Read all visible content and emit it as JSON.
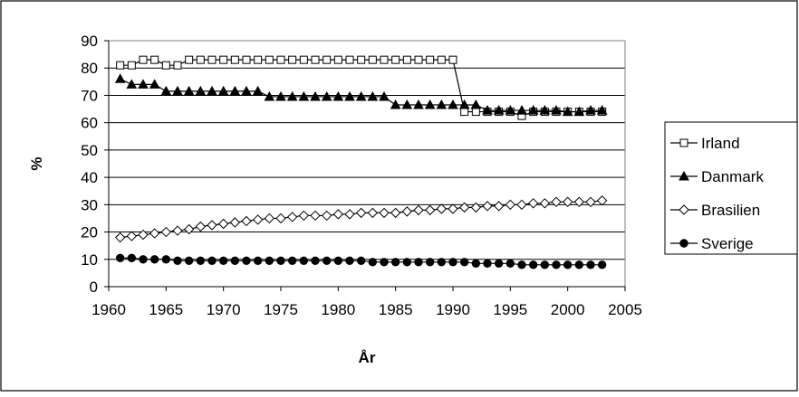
{
  "chart_data": {
    "type": "line",
    "title": "",
    "xlabel": "År",
    "ylabel": "%",
    "xlim": [
      1960,
      2005
    ],
    "ylim": [
      0,
      90
    ],
    "xticks": [
      1960,
      1965,
      1970,
      1975,
      1980,
      1985,
      1990,
      1995,
      2000,
      2005
    ],
    "yticks": [
      0,
      10,
      20,
      30,
      40,
      50,
      60,
      70,
      80,
      90
    ],
    "grid": "horizontal",
    "legend": "right",
    "x": [
      1961,
      1962,
      1963,
      1964,
      1965,
      1966,
      1967,
      1968,
      1969,
      1970,
      1971,
      1972,
      1973,
      1974,
      1975,
      1976,
      1977,
      1978,
      1979,
      1980,
      1981,
      1982,
      1983,
      1984,
      1985,
      1986,
      1987,
      1988,
      1989,
      1990,
      1991,
      1992,
      1993,
      1994,
      1995,
      1996,
      1997,
      1998,
      1999,
      2000,
      2001,
      2002,
      2003
    ],
    "series": [
      {
        "name": "Irland",
        "marker": "square-open",
        "values": [
          81,
          81,
          83,
          83,
          81,
          81,
          83,
          83,
          83,
          83,
          83,
          83,
          83,
          83,
          83,
          83,
          83,
          83,
          83,
          83,
          83,
          83,
          83,
          83,
          83,
          83,
          83,
          83,
          83,
          83,
          64,
          64,
          64,
          64,
          64,
          62.5,
          64,
          64,
          64,
          64,
          64,
          64,
          64
        ]
      },
      {
        "name": "Danmark",
        "marker": "triangle-filled",
        "values": [
          76,
          74,
          74,
          74,
          71.5,
          71.5,
          71.5,
          71.5,
          71.5,
          71.5,
          71.5,
          71.5,
          71.5,
          69.5,
          69.5,
          69.5,
          69.5,
          69.5,
          69.5,
          69.5,
          69.5,
          69.5,
          69.5,
          69.5,
          66.5,
          66.5,
          66.5,
          66.5,
          66.5,
          66.5,
          66.5,
          66.5,
          64.5,
          64.5,
          64.5,
          64.5,
          64.5,
          64.5,
          64.5,
          64,
          64,
          64.5,
          64.5
        ]
      },
      {
        "name": "Brasilien",
        "marker": "diamond-open",
        "values": [
          18,
          18.5,
          19,
          19.5,
          20,
          20.5,
          21,
          22,
          22.5,
          23,
          23.5,
          24,
          24.5,
          25,
          25,
          25.5,
          26,
          26,
          26,
          26.5,
          26.5,
          27,
          27,
          27,
          27,
          27.5,
          28,
          28,
          28.5,
          28.5,
          29,
          29,
          29.5,
          29.5,
          30,
          30,
          30.5,
          30.5,
          31,
          31,
          31,
          31,
          31.5
        ]
      },
      {
        "name": "Sverige",
        "marker": "circle-filled",
        "values": [
          10.5,
          10.5,
          10,
          10,
          10,
          9.5,
          9.5,
          9.5,
          9.5,
          9.5,
          9.5,
          9.5,
          9.5,
          9.5,
          9.5,
          9.5,
          9.5,
          9.5,
          9.5,
          9.5,
          9.5,
          9.5,
          9,
          9,
          9,
          9,
          9,
          9,
          9,
          9,
          9,
          8.5,
          8.5,
          8.5,
          8.5,
          8,
          8,
          8,
          8,
          8,
          8,
          8,
          8
        ]
      }
    ]
  }
}
